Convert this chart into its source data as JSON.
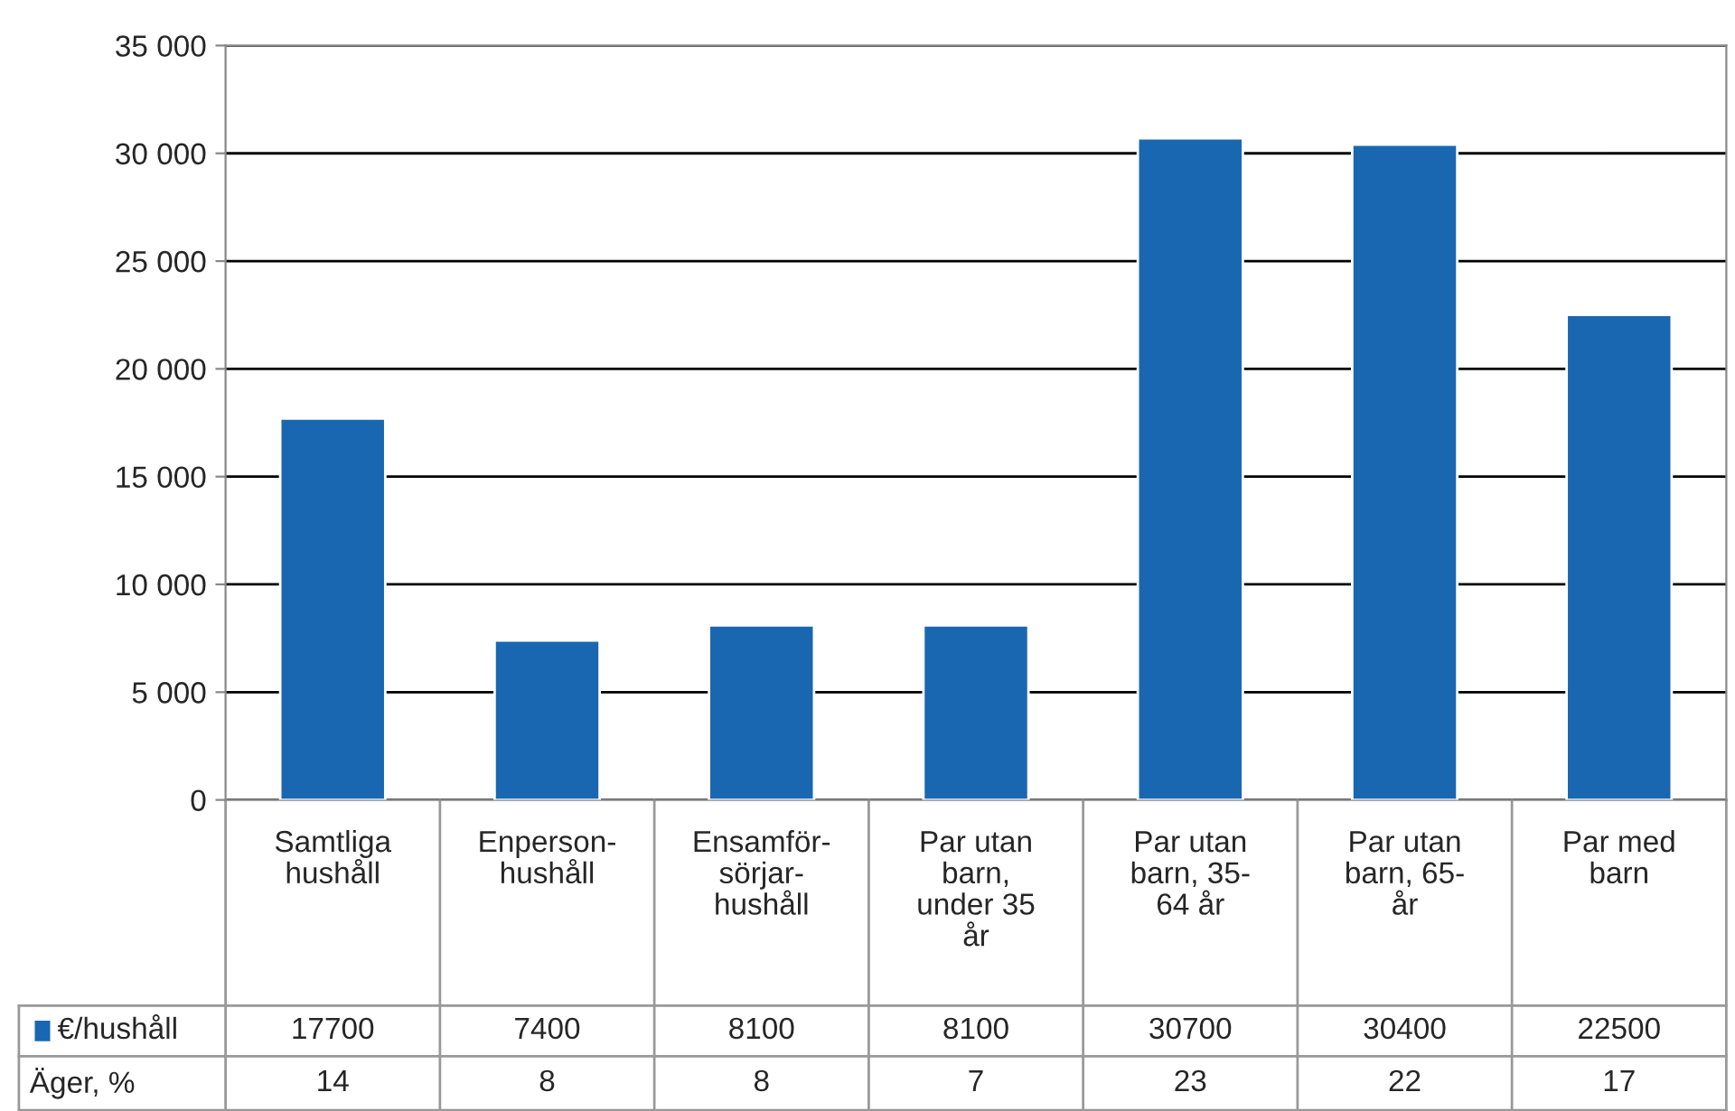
{
  "chart_data": {
    "type": "bar",
    "categories": [
      "Samtliga\nhushåll",
      "Enperson-\nhushåll",
      "Ensamför-\nsörjar-\nhushåll",
      "Par utan\nbarn,\nunder 35\når",
      "Par utan\nbarn, 35-\n64 år",
      "Par utan\nbarn, 65-\når",
      "Par med\nbarn"
    ],
    "series": [
      {
        "name": "€/hushåll",
        "color": "#1a67b1",
        "values": [
          17700,
          7400,
          8100,
          8100,
          30700,
          30400,
          22500
        ]
      }
    ],
    "ylim": [
      0,
      35000
    ],
    "yticks": [
      {
        "value": 0,
        "label": "0"
      },
      {
        "value": 5000,
        "label": "5 000"
      },
      {
        "value": 10000,
        "label": "10 000"
      },
      {
        "value": 15000,
        "label": "15 000"
      },
      {
        "value": 20000,
        "label": "20 000"
      },
      {
        "value": 25000,
        "label": "25 000"
      },
      {
        "value": 30000,
        "label": "30 000"
      },
      {
        "value": 35000,
        "label": "35 000"
      }
    ],
    "grid": "y",
    "data_labels": true,
    "legend": "bottom",
    "annotations": [
      "Äger, %",
      "14",
      "8",
      "8",
      "7",
      "23",
      "22",
      "17"
    ]
  }
}
